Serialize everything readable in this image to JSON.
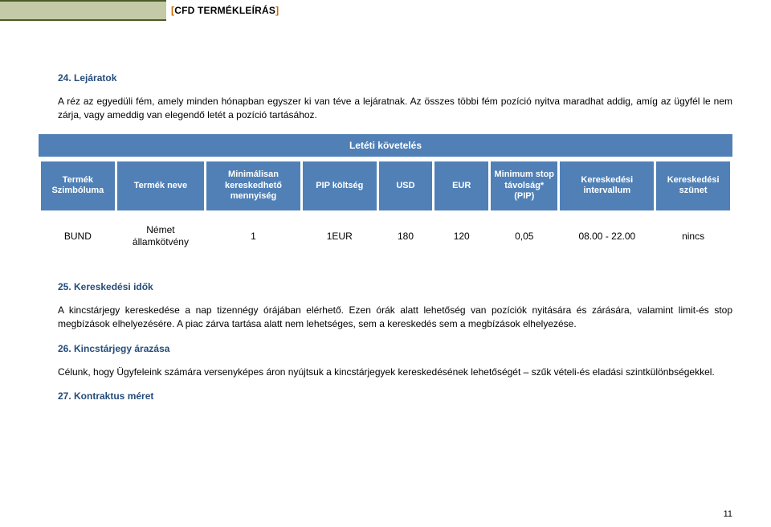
{
  "header": {
    "title_text": "CFD TERMÉKLEÍRÁS",
    "block_bg": "#c4caa8",
    "border_color": "#4a5a28",
    "bracket_color": "#cc6600"
  },
  "section24": {
    "heading": "24. Lejáratok",
    "body": "A réz az egyedüli fém, amely minden hónapban egyszer ki van téve a lejáratnak. Az összes többi fém pozíció nyitva maradhat addig, amíg az ügyfél le nem zárja, vagy ameddig van elegendő letét a pozíció tartásához."
  },
  "table": {
    "banner": "Letéti követelés",
    "header_bg": "#5080b6",
    "header_fg": "#ffffff",
    "columns": [
      "Termék Szimbóluma",
      "Termék neve",
      "Minimálisan kereskedhető mennyiség",
      "PIP költség",
      "USD",
      "EUR",
      "Minimum stop távolság* (PIP)",
      "Kereskedési intervallum",
      "Kereskedési szünet"
    ],
    "row": {
      "symbol": "BUND",
      "name": "Német államkötvény",
      "qty": "1",
      "pip": "1EUR",
      "usd": "180",
      "eur": "120",
      "stop": "0,05",
      "interval": "08.00 - 22.00",
      "break": "nincs"
    }
  },
  "section25": {
    "heading": "25. Kereskedési idők",
    "body": "A kincstárjegy kereskedése a nap tizennégy órájában elérhető. Ezen órák alatt lehetőség van pozíciók nyitására és zárására, valamint limit-és stop megbízások elhelyezésére. A piac zárva tartása alatt nem lehetséges, sem a kereskedés sem a megbízások elhelyezése."
  },
  "section26": {
    "heading": "26. Kincstárjegy árazása",
    "body": "Célunk, hogy Ügyfeleink számára versenyképes áron nyújtsuk a kincstárjegyek kereskedésének lehetőségét – szűk vételi-és eladási szintkülönbségekkel."
  },
  "section27": {
    "heading": "27. Kontraktus méret"
  },
  "page_number": "11",
  "heading_color": "#254c7a"
}
